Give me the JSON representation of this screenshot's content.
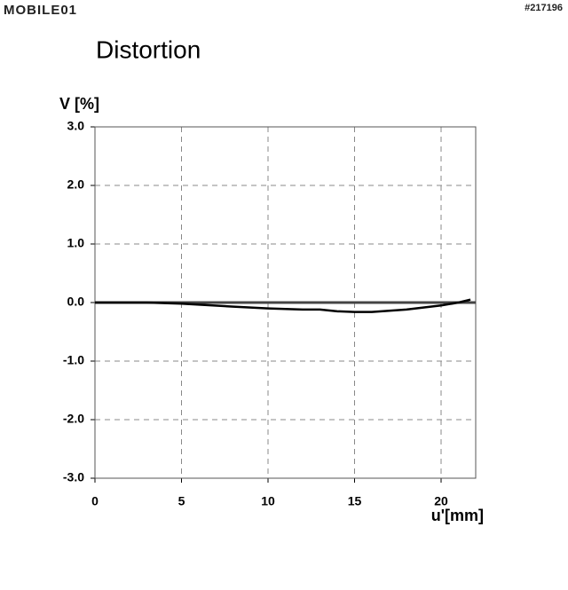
{
  "watermark": {
    "logo": "MOBILE01",
    "id": "#217196"
  },
  "chart_data": {
    "type": "line",
    "title": "Distortion",
    "y_label": "V [%]",
    "x_label": "u'[mm]",
    "x": [
      0,
      3,
      5,
      8,
      10,
      12,
      13,
      14,
      15,
      16,
      18,
      20,
      21,
      21.7
    ],
    "values": [
      0,
      0,
      -0.02,
      -0.07,
      -0.1,
      -0.12,
      -0.12,
      -0.15,
      -0.16,
      -0.16,
      -0.12,
      -0.05,
      0,
      0.05
    ],
    "color": "#000000",
    "xlim": [
      0,
      22
    ],
    "xticks": [
      0,
      5,
      10,
      15,
      20
    ],
    "ylim": [
      -3,
      3
    ],
    "yticks": [
      {
        "value": -3,
        "label": "-3.0"
      },
      {
        "value": -2,
        "label": "-2.0"
      },
      {
        "value": -1,
        "label": "-1.0"
      },
      {
        "value": 0,
        "label": "0.0"
      },
      {
        "value": 1,
        "label": "1.0"
      },
      {
        "value": 2,
        "label": "2.0"
      },
      {
        "value": 3,
        "label": "3.0"
      }
    ],
    "grid": true
  }
}
